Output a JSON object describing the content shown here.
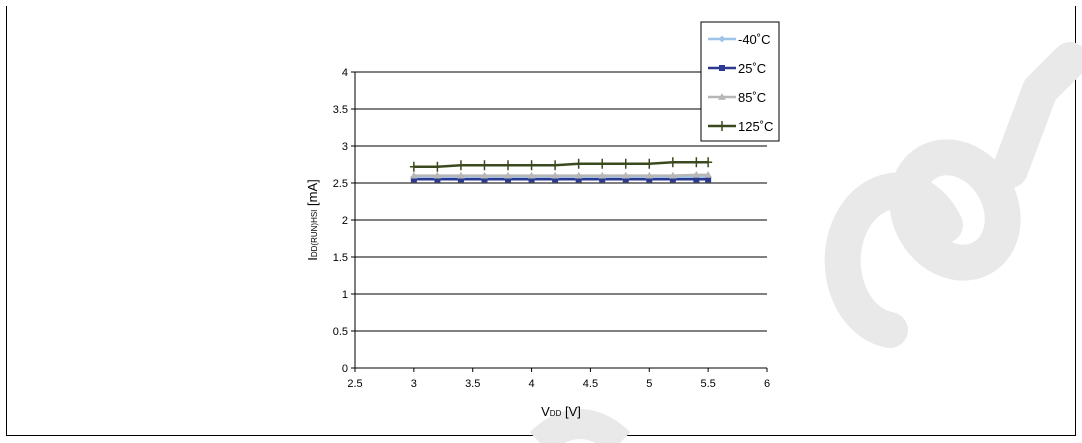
{
  "colors": {
    "series_m40": "#9dc3e6",
    "series_25": "#2b3990",
    "series_85": "#b7b7b7",
    "series_125": "#3b4a1e",
    "grid": "#000000",
    "watermark": "#e8e8e8"
  },
  "chart_data": {
    "type": "line",
    "title": "",
    "xlabel": {
      "main": "V",
      "sub": "DD",
      "unit": " [V]"
    },
    "ylabel": {
      "main": "I",
      "sub": "DD(RUN)HSI",
      "unit": " [mA]"
    },
    "xlim": [
      2.5,
      6
    ],
    "ylim": [
      0,
      4
    ],
    "x_ticks": [
      "2.5",
      "3",
      "3.5",
      "4",
      "4.5",
      "5",
      "5.5",
      "6"
    ],
    "y_ticks": [
      "0",
      "0.5",
      "1",
      "1.5",
      "2",
      "2.5",
      "3",
      "3.5",
      "4"
    ],
    "grid": "horizontal",
    "legend_position": "top-right",
    "x": [
      3.0,
      3.2,
      3.4,
      3.6,
      3.8,
      4.0,
      4.2,
      4.4,
      4.6,
      4.8,
      5.0,
      5.2,
      5.4,
      5.5
    ],
    "series": [
      {
        "name": "-40˚C",
        "marker": "diamond",
        "color": "#9dc3e6",
        "values": [
          2.58,
          2.58,
          2.58,
          2.58,
          2.58,
          2.58,
          2.58,
          2.58,
          2.58,
          2.58,
          2.58,
          2.58,
          2.58,
          2.58
        ]
      },
      {
        "name": "25˚C",
        "marker": "square",
        "color": "#2b3990",
        "values": [
          2.55,
          2.55,
          2.55,
          2.55,
          2.55,
          2.55,
          2.55,
          2.55,
          2.55,
          2.55,
          2.55,
          2.55,
          2.55,
          2.55
        ]
      },
      {
        "name": "85˚C",
        "marker": "triangle",
        "color": "#b7b7b7",
        "values": [
          2.6,
          2.6,
          2.6,
          2.6,
          2.6,
          2.6,
          2.6,
          2.6,
          2.6,
          2.6,
          2.6,
          2.6,
          2.61,
          2.61
        ]
      },
      {
        "name": "125˚C",
        "marker": "plus",
        "color": "#3b4a1e",
        "values": [
          2.72,
          2.72,
          2.74,
          2.74,
          2.74,
          2.74,
          2.74,
          2.76,
          2.76,
          2.76,
          2.76,
          2.78,
          2.78,
          2.78
        ]
      }
    ]
  }
}
